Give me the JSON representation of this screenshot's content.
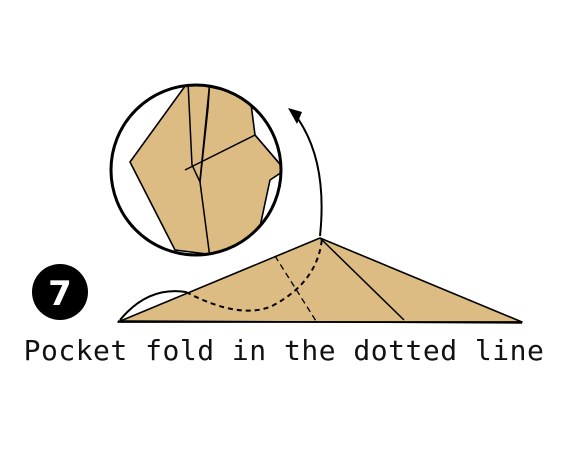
{
  "step": {
    "number": "7"
  },
  "caption": "Pocket fold in the dotted line",
  "colors": {
    "paper": "#dcbc82",
    "line": "#000000",
    "background": "#ffffff",
    "step_badge": "#000000"
  },
  "icons": {
    "step_badge": "black-circle-number",
    "fold_arrow": "curved-arrow-up"
  }
}
